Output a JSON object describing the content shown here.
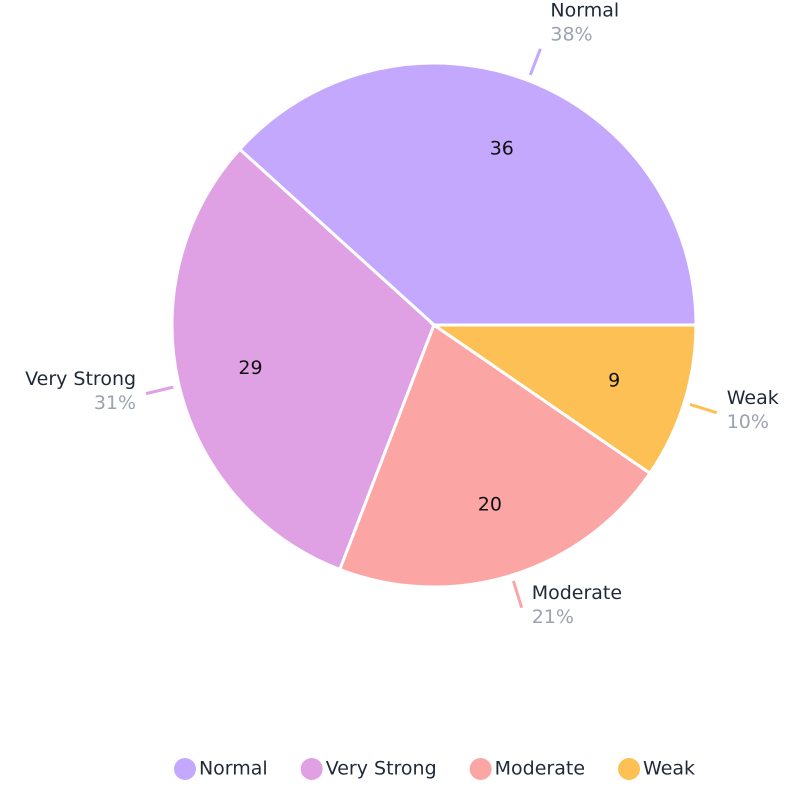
{
  "chart_data": {
    "type": "pie",
    "categories": [
      "Normal",
      "Very Strong",
      "Moderate",
      "Weak"
    ],
    "values": [
      36,
      29,
      20,
      9
    ],
    "percent_labels": [
      "38%",
      "31%",
      "21%",
      "10%"
    ],
    "colors": [
      "#c4a8fd",
      "#e0a0e4",
      "#fca5a5",
      "#fdc054"
    ],
    "legend": "bottom"
  }
}
